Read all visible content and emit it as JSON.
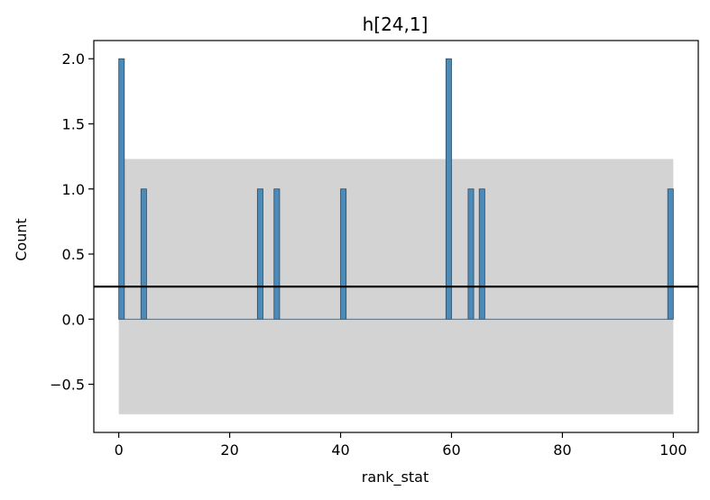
{
  "chart_data": {
    "type": "bar",
    "title": "h[24,1]",
    "xlabel": "rank_stat",
    "ylabel": "Count",
    "xlim": [
      -4.5,
      104.5
    ],
    "ylim": [
      -0.87,
      2.14
    ],
    "xticks": [
      0,
      20,
      40,
      60,
      80,
      100
    ],
    "xtick_labels": [
      "0",
      "20",
      "40",
      "60",
      "80",
      "100"
    ],
    "yticks": [
      -0.5,
      0.0,
      0.5,
      1.0,
      1.5,
      2.0
    ],
    "ytick_labels": [
      "−0.5",
      "0.0",
      "0.5",
      "1.0",
      "1.5",
      "2.0"
    ],
    "bins": {
      "start": 0,
      "end": 100,
      "count": 100
    },
    "bars": [
      {
        "x": 0,
        "count": 2
      },
      {
        "x": 4,
        "count": 1
      },
      {
        "x": 25,
        "count": 1
      },
      {
        "x": 28,
        "count": 1
      },
      {
        "x": 40,
        "count": 1
      },
      {
        "x": 59,
        "count": 2
      },
      {
        "x": 63,
        "count": 1
      },
      {
        "x": 65,
        "count": 1
      },
      {
        "x": 99,
        "count": 1
      }
    ],
    "band": {
      "x0": 0,
      "x1": 100,
      "y0": -0.73,
      "y1": 1.23,
      "color": "#d3d3d3"
    },
    "hline": {
      "y": 0.25,
      "color": "#000000"
    },
    "bar_color": "#4c8ab8",
    "bar_edge_color": "#2b4a63",
    "grid": false,
    "legend": "none"
  }
}
